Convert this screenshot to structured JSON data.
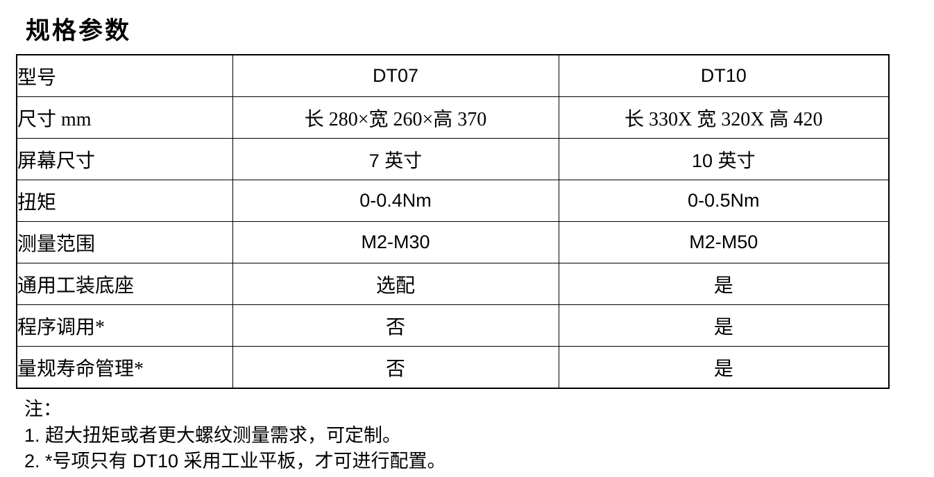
{
  "title": "规格参数",
  "table": {
    "rows": [
      {
        "label": "型号",
        "values": [
          "DT07",
          "DT10"
        ]
      },
      {
        "label": "尺寸 mm",
        "values": [
          "长 280×宽 260×高 370",
          "长 330X 宽 320X 高 420"
        ]
      },
      {
        "label": "屏幕尺寸",
        "values": [
          "7 英寸",
          "10 英寸"
        ]
      },
      {
        "label": "扭矩",
        "values": [
          "0-0.4Nm",
          "0-0.5Nm"
        ]
      },
      {
        "label": "测量范围",
        "values": [
          "M2-M30",
          "M2-M50"
        ]
      },
      {
        "label": "通用工装底座",
        "values": [
          "选配",
          "是"
        ]
      },
      {
        "label": "程序调用*",
        "values": [
          "否",
          "是"
        ]
      },
      {
        "label": "量规寿命管理*",
        "values": [
          "否",
          "是"
        ]
      }
    ]
  },
  "notes": {
    "heading": "注：",
    "items": [
      "1. 超大扭矩或者更大螺纹测量需求，可定制。",
      "2. *号项只有 DT10 采用工业平板，才可进行配置。"
    ]
  }
}
